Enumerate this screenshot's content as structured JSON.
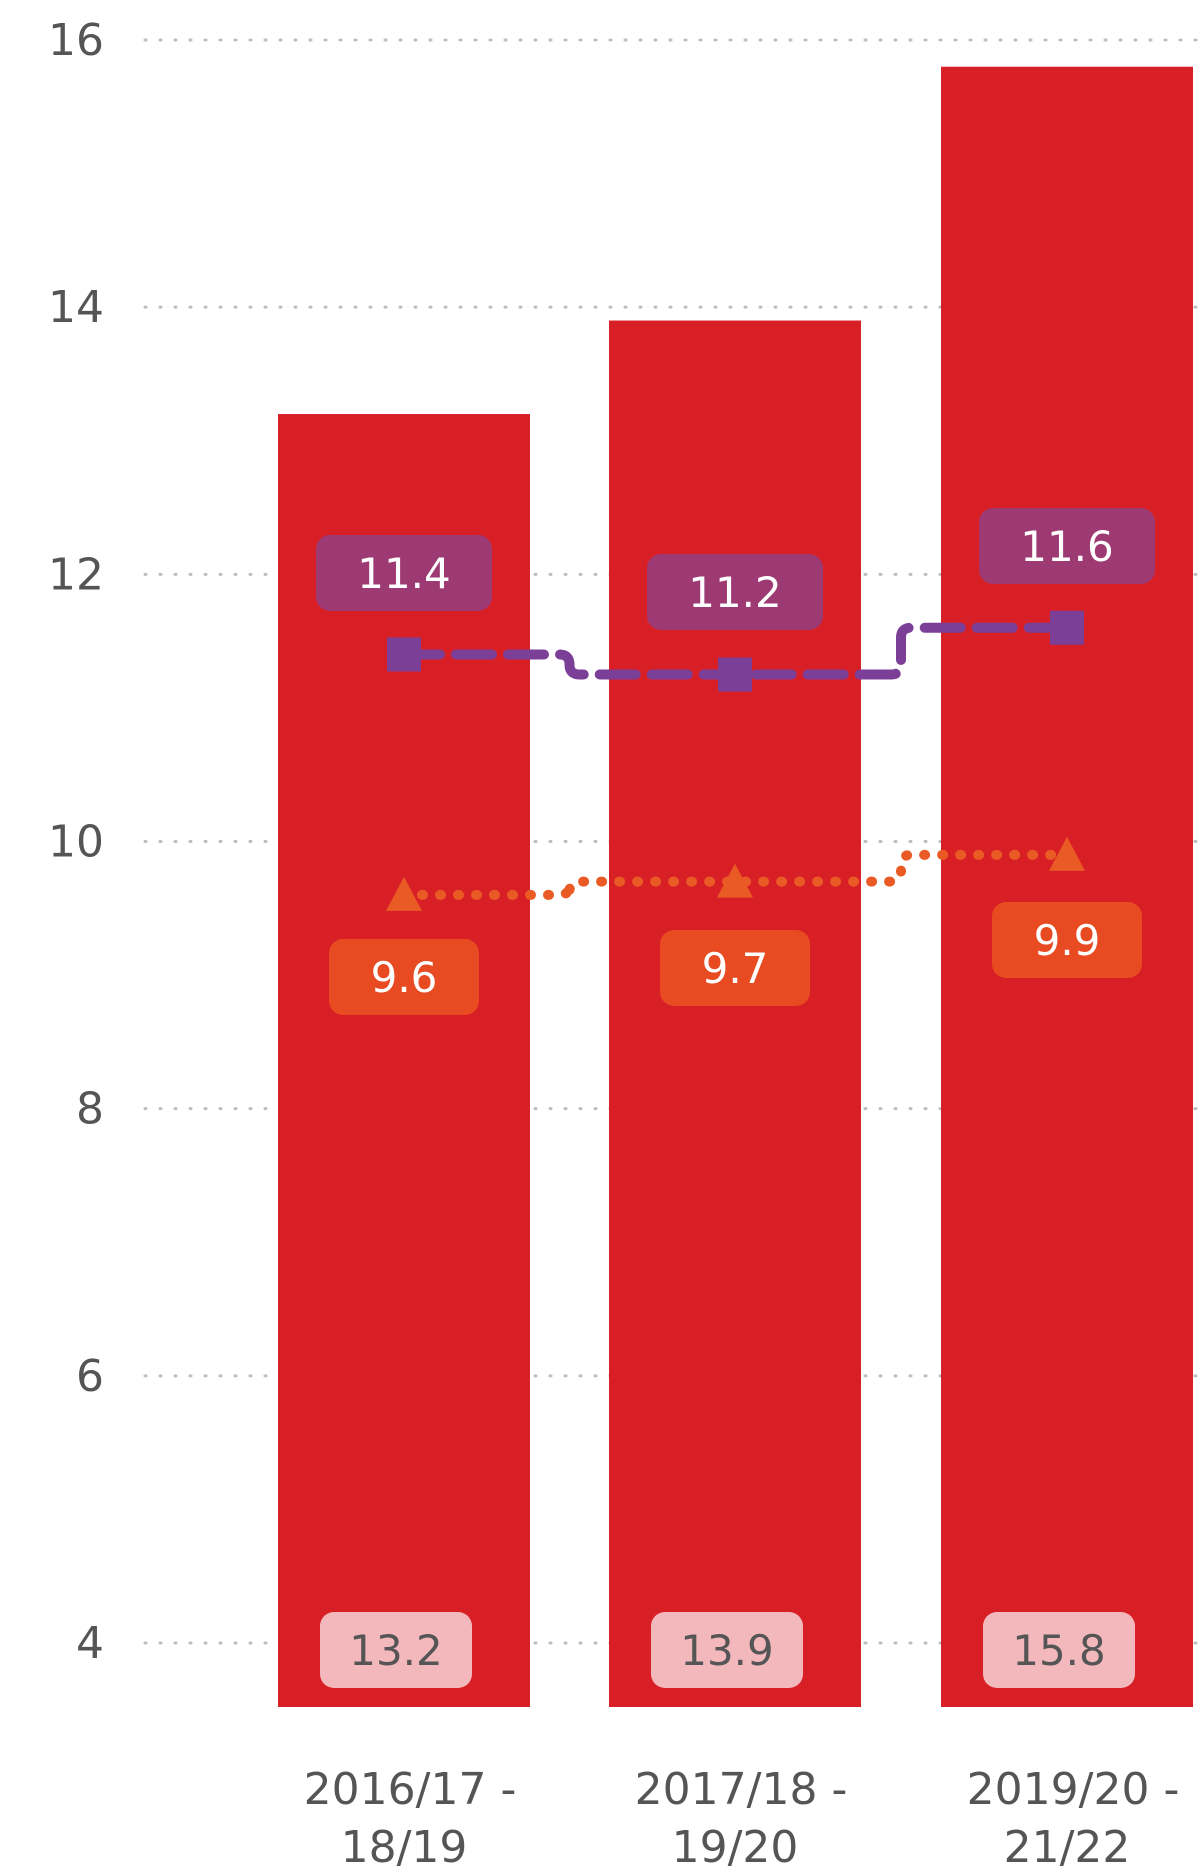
{
  "chart_data": {
    "type": "bar",
    "categories": [
      [
        "2016/17 -",
        "18/19"
      ],
      [
        "2017/18 -",
        "19/20"
      ],
      [
        "2019/20 -",
        "21/22"
      ]
    ],
    "ylim": [
      4,
      16
    ],
    "yticks": [
      "4",
      "6",
      "8",
      "10",
      "12",
      "14",
      "16"
    ],
    "grid": true,
    "legend": "none",
    "series": [
      {
        "type": "bar",
        "values": [
          13.2,
          13.9,
          15.8
        ],
        "labels": [
          "13.2",
          "13.9",
          "15.8"
        ],
        "color": "#d91f26",
        "label_bg": "#f2b8bc",
        "label_color": "#555555"
      },
      {
        "type": "line",
        "style": "dashed",
        "marker": "square",
        "values": [
          11.4,
          11.25,
          11.6
        ],
        "labels": [
          "11.4",
          "11.2",
          "11.6"
        ],
        "color": "#7b3f98",
        "label_bg": "#9e3a73",
        "label_color": "#ffffff"
      },
      {
        "type": "line",
        "style": "dotted",
        "marker": "triangle",
        "values": [
          9.6,
          9.7,
          9.9
        ],
        "labels": [
          "9.6",
          "9.7",
          "9.9"
        ],
        "color": "#ea5a24",
        "label_bg": "#e84a22",
        "label_color": "#ffffff"
      }
    ]
  }
}
